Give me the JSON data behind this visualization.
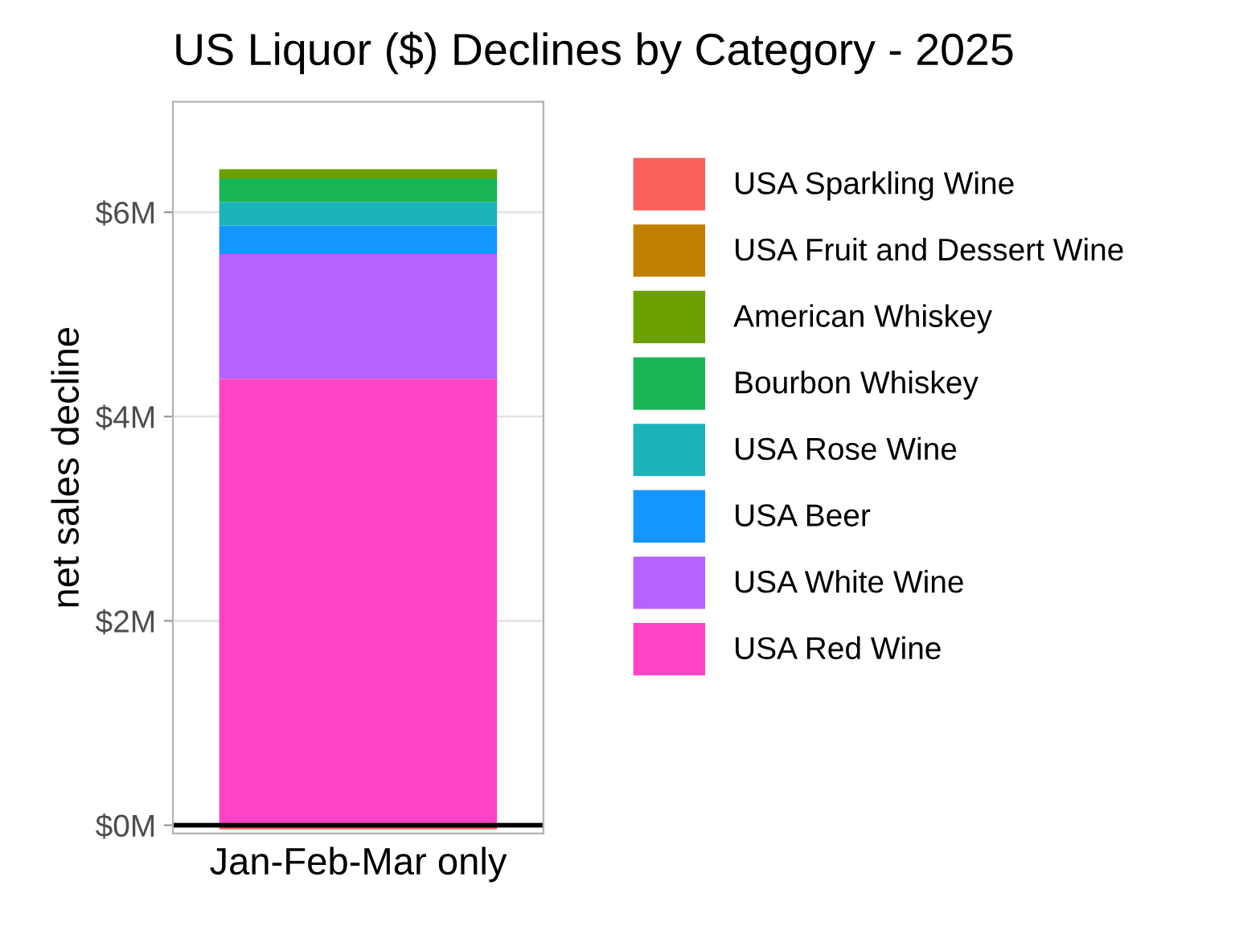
{
  "chart_data": {
    "type": "bar",
    "title": "US Liquor ($) Declines by Category - 2025",
    "ylabel": "net sales decline",
    "categories": [
      "Jan-Feb-Mar only"
    ],
    "stacked": true,
    "series": [
      {
        "name": "USA Red Wine",
        "color": "#ff43c4",
        "values": [
          4.37
        ]
      },
      {
        "name": "USA White Wine",
        "color": "#b761ff",
        "values": [
          1.22
        ]
      },
      {
        "name": "USA Beer",
        "color": "#1495ff",
        "values": [
          0.28
        ]
      },
      {
        "name": "USA Rose Wine",
        "color": "#1ab3ba",
        "values": [
          0.23
        ]
      },
      {
        "name": "Bourbon Whiskey",
        "color": "#1ab555",
        "values": [
          0.23
        ]
      },
      {
        "name": "American Whiskey",
        "color": "#6aa000",
        "values": [
          0.09
        ]
      },
      {
        "name": "USA Fruit and Dessert Wine",
        "color": "#c08000",
        "values": [
          null
        ]
      },
      {
        "name": "USA Sparkling Wine",
        "color": "#f8605a",
        "values": [
          -0.04
        ]
      }
    ],
    "ylim": [
      -0.08,
      7.08
    ],
    "yticks": [
      {
        "value": 0,
        "label": "$0M"
      },
      {
        "value": 2,
        "label": "$2M"
      },
      {
        "value": 4,
        "label": "$4M"
      },
      {
        "value": 6,
        "label": "$6M"
      }
    ],
    "grid": "y",
    "legend": "right",
    "ref_lines": [
      {
        "axis": "y",
        "value": 0,
        "color": "#000000"
      }
    ]
  }
}
